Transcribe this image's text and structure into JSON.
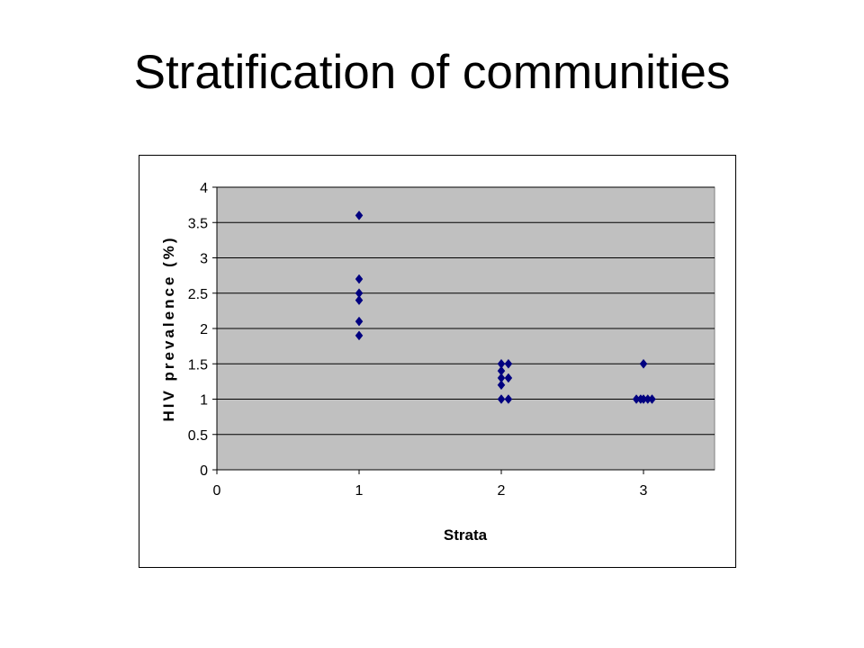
{
  "slide": {
    "title": "Stratification of communities"
  },
  "chart_data": {
    "type": "scatter",
    "title": "",
    "xlabel": "Strata",
    "ylabel": "HIV prevalence (%)",
    "xlim": [
      0,
      3.5
    ],
    "ylim": [
      0,
      4
    ],
    "xticks": [
      0,
      1,
      2,
      3
    ],
    "yticks": [
      0,
      0.5,
      1,
      1.5,
      2,
      2.5,
      3,
      3.5,
      4
    ],
    "grid": true,
    "legend": "none",
    "colors": {
      "plot_area": "#c0c0c0",
      "marker": "#000080",
      "gridline": "#000000"
    },
    "series": [
      {
        "points": [
          {
            "x": 1,
            "y": 3.6
          },
          {
            "x": 1,
            "y": 2.7
          },
          {
            "x": 1,
            "y": 2.5
          },
          {
            "x": 1,
            "y": 2.4
          },
          {
            "x": 1,
            "y": 2.1
          },
          {
            "x": 1,
            "y": 1.9
          },
          {
            "x": 2,
            "y": 1.5
          },
          {
            "x": 2.05,
            "y": 1.5
          },
          {
            "x": 2,
            "y": 1.4
          },
          {
            "x": 2,
            "y": 1.3
          },
          {
            "x": 2.05,
            "y": 1.3
          },
          {
            "x": 2,
            "y": 1.2
          },
          {
            "x": 2,
            "y": 1.0
          },
          {
            "x": 2.05,
            "y": 1.0
          },
          {
            "x": 3,
            "y": 1.5
          },
          {
            "x": 2.95,
            "y": 1.0
          },
          {
            "x": 2.98,
            "y": 1.0
          },
          {
            "x": 3,
            "y": 1.0
          },
          {
            "x": 3.03,
            "y": 1.0
          },
          {
            "x": 3.06,
            "y": 1.0
          }
        ]
      }
    ]
  }
}
